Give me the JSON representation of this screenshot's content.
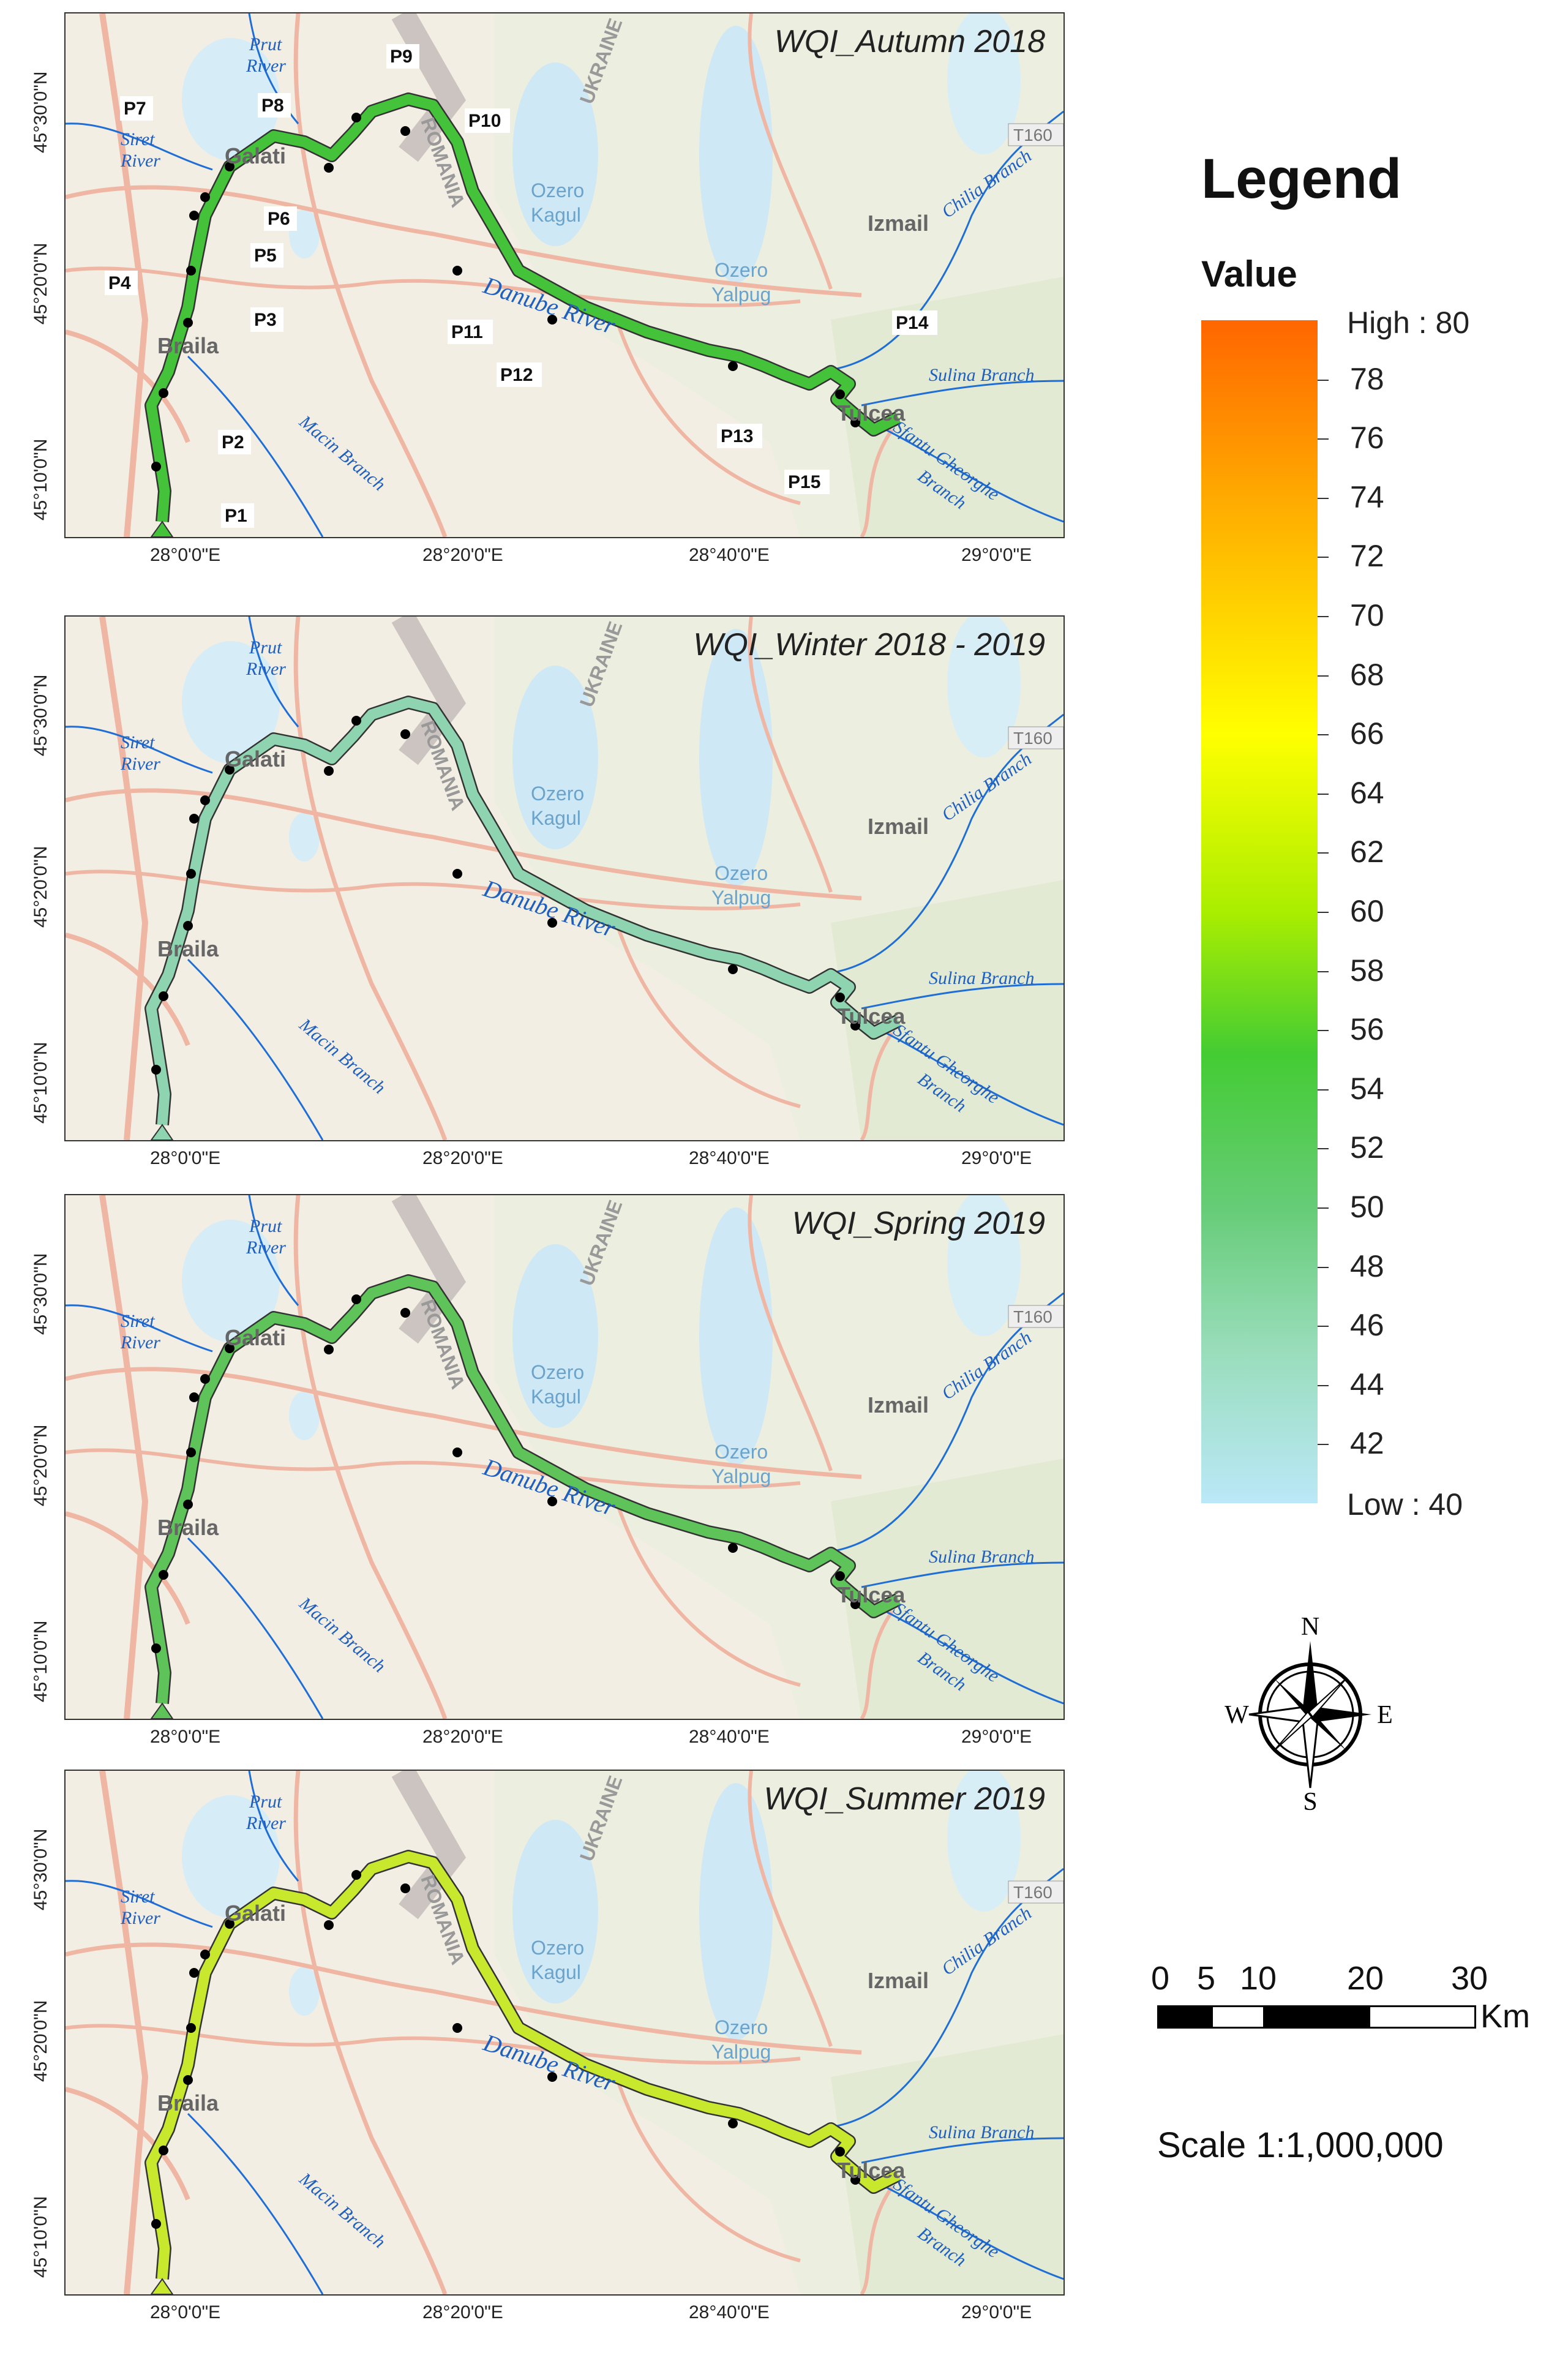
{
  "panels": [
    {
      "title": "WQI_Autumn 2018",
      "color": "#44c23a",
      "show_points": true
    },
    {
      "title": "WQI_Winter 2018 - 2019",
      "color": "#8fd4b0",
      "show_points": false
    },
    {
      "title": "WQI_Spring 2019",
      "color": "#5ec45a",
      "show_points": false
    },
    {
      "title": "WQI_Summer 2019",
      "color": "#c8e82e",
      "show_points": false
    }
  ],
  "lat_labels": [
    "45°30'0\"N",
    "45°20'0\"N",
    "45°10'0\"N"
  ],
  "lon_labels": [
    "28°0'0\"E",
    "28°20'0\"E",
    "28°40'0\"E",
    "29°0'0\"E"
  ],
  "map_labels": {
    "prut": "Prut River",
    "siret": "Siret River",
    "galati": "Galati",
    "braila": "Braila",
    "danube": "Danube River",
    "macin": "Macin Branch",
    "kagul": "Ozero Kagul",
    "yalpug": "Ozero Yalpug",
    "izmail": "Izmail",
    "chilia": "Chilia Branch",
    "sulina": "Sulina Branch",
    "sfantu": "Sfantu Gheorghe Branch",
    "tulcea": "Tulcea",
    "romania": "ROMANIA",
    "ukraine": "UKRAINE",
    "road": "T160"
  },
  "points": [
    "P1",
    "P2",
    "P3",
    "P4",
    "P5",
    "P6",
    "P7",
    "P8",
    "P9",
    "P10",
    "P11",
    "P12",
    "P13",
    "P14",
    "P15"
  ],
  "legend": {
    "title": "Legend",
    "value_label": "Value",
    "high": "High : 80",
    "low": "Low : 40",
    "ticks": [
      "78",
      "76",
      "74",
      "72",
      "70",
      "68",
      "66",
      "64",
      "62",
      "60",
      "58",
      "56",
      "54",
      "52",
      "50",
      "48",
      "46",
      "44",
      "42"
    ]
  },
  "compass": {
    "n": "N",
    "s": "S",
    "e": "E",
    "w": "W"
  },
  "scale": {
    "ticks": [
      "0",
      "5",
      "10",
      "20",
      "30"
    ],
    "unit": "Km",
    "text": "Scale 1:1,000,000"
  }
}
